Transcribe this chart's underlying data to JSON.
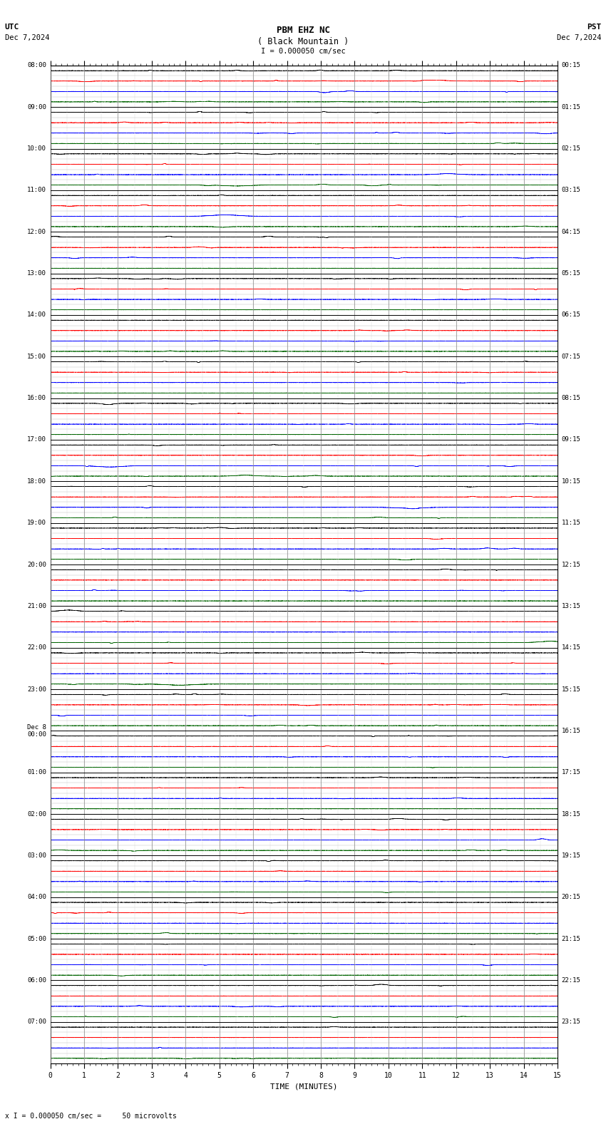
{
  "title_line1": "PBM EHZ NC",
  "title_line2": "( Black Mountain )",
  "scale_text": "I = 0.000050 cm/sec",
  "utc_label": "UTC",
  "utc_date": "Dec 7,2024",
  "pst_label": "PST",
  "pst_date": "Dec 7,2024",
  "bottom_label": "x I = 0.000050 cm/sec =     50 microvolts",
  "xlabel": "TIME (MINUTES)",
  "left_times": [
    "08:00",
    "09:00",
    "10:00",
    "11:00",
    "12:00",
    "13:00",
    "14:00",
    "15:00",
    "16:00",
    "17:00",
    "18:00",
    "19:00",
    "20:00",
    "21:00",
    "22:00",
    "23:00",
    "Dec 8\n00:00",
    "01:00",
    "02:00",
    "03:00",
    "04:00",
    "05:00",
    "06:00",
    "07:00"
  ],
  "right_times": [
    "00:15",
    "01:15",
    "02:15",
    "03:15",
    "04:15",
    "05:15",
    "06:15",
    "07:15",
    "08:15",
    "09:15",
    "10:15",
    "11:15",
    "12:15",
    "13:15",
    "14:15",
    "15:15",
    "16:15",
    "17:15",
    "18:15",
    "19:15",
    "20:15",
    "21:15",
    "22:15",
    "23:15"
  ],
  "n_rows": 24,
  "n_subrows": 4,
  "minutes": 15,
  "bg_color": "#ffffff",
  "trace_colors": [
    "#000000",
    "#ff0000",
    "#0000ff",
    "#006400"
  ],
  "grid_color": "#888888",
  "minor_grid_color": "#cccccc",
  "label_color": "#000000",
  "seed": 12345
}
